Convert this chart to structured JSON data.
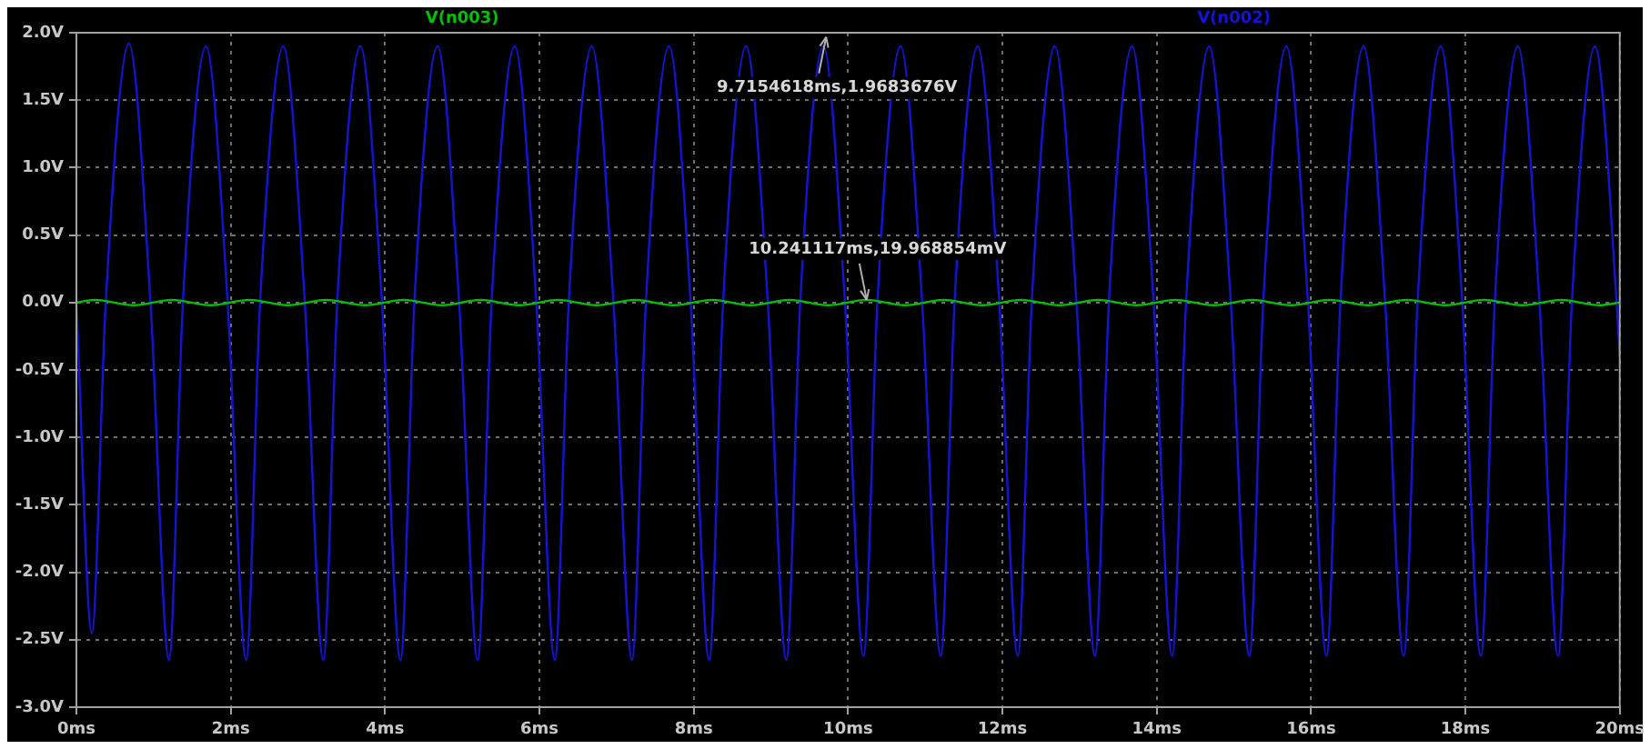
{
  "chart_data": {
    "type": "line",
    "xlim": [
      0,
      20
    ],
    "xticks": [
      {
        "value": 0,
        "label": "0ms"
      },
      {
        "value": 2,
        "label": "2ms"
      },
      {
        "value": 4,
        "label": "4ms"
      },
      {
        "value": 6,
        "label": "6ms"
      },
      {
        "value": 8,
        "label": "8ms"
      },
      {
        "value": 10,
        "label": "10ms"
      },
      {
        "value": 12,
        "label": "12ms"
      },
      {
        "value": 14,
        "label": "14ms"
      },
      {
        "value": 16,
        "label": "16ms"
      },
      {
        "value": 18,
        "label": "18ms"
      },
      {
        "value": 20,
        "label": "20ms"
      }
    ],
    "ylim": [
      -3,
      2
    ],
    "yticks": [
      {
        "value": -3,
        "label": "-3.0V"
      },
      {
        "value": -2.5,
        "label": "-2.5V"
      },
      {
        "value": -2,
        "label": "-2.0V"
      },
      {
        "value": -1.5,
        "label": "-1.5V"
      },
      {
        "value": -1,
        "label": "-1.0V"
      },
      {
        "value": -0.5,
        "label": "-0.5V"
      },
      {
        "value": 0,
        "label": "0.0V"
      },
      {
        "value": 0.5,
        "label": "0.5V"
      },
      {
        "value": 1,
        "label": "1.0V"
      },
      {
        "value": 1.5,
        "label": "1.5V"
      },
      {
        "value": 2,
        "label": "2.0V"
      }
    ],
    "grid": true,
    "legend": "top",
    "marker": "none",
    "line_style": "solid",
    "series": [
      {
        "name": "V(n003)",
        "color": "#00c000",
        "x": [
          0,
          0.24,
          0.74,
          1.24,
          1.74,
          2.24,
          2.74,
          3.24,
          3.74,
          4.24,
          4.74,
          5.24,
          5.74,
          6.24,
          6.74,
          7.24,
          7.74,
          8.24,
          8.74,
          9.24,
          9.74,
          10.24,
          10.74,
          11.24,
          11.74,
          12.24,
          12.74,
          13.24,
          13.74,
          14.24,
          14.74,
          15.24,
          15.74,
          16.24,
          16.74,
          17.24,
          17.74,
          18.24,
          18.74,
          19.24,
          19.74,
          20
        ],
        "values": [
          0,
          0.02,
          -0.02,
          0.02,
          -0.02,
          0.02,
          -0.02,
          0.02,
          -0.02,
          0.02,
          -0.02,
          0.02,
          -0.02,
          0.02,
          -0.02,
          0.02,
          -0.02,
          0.02,
          -0.02,
          0.02,
          -0.02,
          0.02,
          -0.02,
          0.02,
          -0.02,
          0.02,
          -0.02,
          0.02,
          -0.02,
          0.02,
          -0.02,
          0.02,
          -0.02,
          0.02,
          -0.02,
          0.02,
          -0.02,
          0.02,
          -0.02,
          0.02,
          -0.02,
          0
        ]
      },
      {
        "name": "V(n002)",
        "color": "#1414d2",
        "x": [
          0,
          0.2,
          0.38,
          0.68,
          0.96,
          1.2,
          1.38,
          1.68,
          1.96,
          2.2,
          2.38,
          2.68,
          2.96,
          3.2,
          3.38,
          3.68,
          3.96,
          4.2,
          4.38,
          4.68,
          4.96,
          5.2,
          5.38,
          5.68,
          5.96,
          6.2,
          6.38,
          6.68,
          6.96,
          7.2,
          7.38,
          7.68,
          7.96,
          8.2,
          8.38,
          8.68,
          8.96,
          9.2,
          9.38,
          9.68,
          9.96,
          10.2,
          10.38,
          10.68,
          10.96,
          11.2,
          11.38,
          11.68,
          11.96,
          12.2,
          12.38,
          12.68,
          12.96,
          13.2,
          13.38,
          13.68,
          13.96,
          14.2,
          14.38,
          14.68,
          14.96,
          15.2,
          15.38,
          15.68,
          15.96,
          16.2,
          16.38,
          16.68,
          16.96,
          17.2,
          17.38,
          17.68,
          17.96,
          18.2,
          18.38,
          18.68,
          18.96,
          19.2,
          19.38,
          19.68,
          19.96,
          20
        ],
        "values": [
          0,
          -2.45,
          0,
          1.92,
          0,
          -2.65,
          0,
          1.9,
          0,
          -2.65,
          0,
          1.9,
          0,
          -2.65,
          0,
          1.9,
          0,
          -2.65,
          0,
          1.9,
          0,
          -2.65,
          0,
          1.9,
          0,
          -2.65,
          0,
          1.9,
          0,
          -2.65,
          0,
          1.9,
          0,
          -2.65,
          0,
          1.9,
          0,
          -2.65,
          0,
          1.9,
          0,
          -2.62,
          0,
          1.9,
          0,
          -2.62,
          0,
          1.9,
          0,
          -2.62,
          0,
          1.9,
          0,
          -2.62,
          0,
          1.9,
          0,
          -2.62,
          0,
          1.9,
          0,
          -2.62,
          0,
          1.9,
          0,
          -2.62,
          0,
          1.9,
          0,
          -2.62,
          0,
          1.9,
          0,
          -2.62,
          0,
          1.9,
          0,
          -2.62,
          0,
          1.9,
          0,
          -0.4
        ]
      }
    ],
    "annotations": [
      {
        "text": "9.7154618ms,1.9683676V",
        "x": 9.7154618,
        "y": 1.9683676
      },
      {
        "text": "10.241117ms,19.968854mV",
        "x": 10.241117,
        "y": 0.019968854
      }
    ]
  }
}
